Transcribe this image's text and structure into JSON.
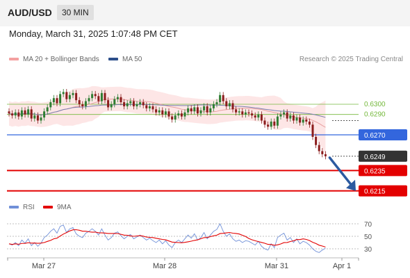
{
  "header": {
    "pair": "AUD/USD",
    "timeframe": "30 MIN"
  },
  "datetime": "Monday, March 31, 2025 1:07:48 PM CET",
  "legend": {
    "ma20": "MA 20 + Bollinger Bands",
    "ma50": "MA 50",
    "credit": "Research © 2025 Trading Central"
  },
  "rsi_legend": {
    "rsi": "RSI",
    "ma": "9MA"
  },
  "colors": {
    "up": "#2e7d32",
    "down": "#8b1c1c",
    "ma20": "#e57373",
    "ma50": "#5c6bc0",
    "band": "#fde0e0",
    "pivot": "#3366dd",
    "support": "#e30000",
    "green_level": "#74b83b",
    "current": "#333333",
    "arrow": "#2c5aa0"
  },
  "chart_data": {
    "type": "candlestick",
    "x_ticks": [
      "Mar 27",
      "Mar 28",
      "Mar 31",
      "Apr 1"
    ],
    "price_levels": [
      {
        "value": 0.63,
        "label": "0.6300",
        "kind": "resistance"
      },
      {
        "value": 0.629,
        "label": "0.6290",
        "kind": "resistance"
      },
      {
        "value": 0.627,
        "label": "0.6270",
        "kind": "pivot"
      },
      {
        "value": 0.6249,
        "label": "0.6249",
        "kind": "current"
      },
      {
        "value": 0.6235,
        "label": "0.6235",
        "kind": "support"
      },
      {
        "value": 0.6215,
        "label": "0.6215",
        "kind": "support"
      }
    ],
    "forecast": {
      "from": 0.6249,
      "to": 0.6215,
      "direction": "down"
    },
    "close": [
      0.6291,
      0.6289,
      0.6292,
      0.6288,
      0.6294,
      0.629,
      0.6295,
      0.6286,
      0.6289,
      0.6284,
      0.6287,
      0.6293,
      0.6297,
      0.6302,
      0.6306,
      0.6301,
      0.631,
      0.6312,
      0.6305,
      0.6309,
      0.6311,
      0.6304,
      0.63,
      0.6298,
      0.6303,
      0.6306,
      0.631,
      0.6308,
      0.6303,
      0.6311,
      0.6304,
      0.6297,
      0.63,
      0.6305,
      0.6307,
      0.6302,
      0.6298,
      0.6301,
      0.6303,
      0.6298,
      0.63,
      0.6302,
      0.6299,
      0.6296,
      0.6298,
      0.6295,
      0.6292,
      0.6294,
      0.629,
      0.6293,
      0.6288,
      0.6285,
      0.6289,
      0.6291,
      0.6288,
      0.6292,
      0.6296,
      0.6293,
      0.6297,
      0.6291,
      0.6294,
      0.6298,
      0.6292,
      0.6296,
      0.63,
      0.6302,
      0.6309,
      0.6303,
      0.6298,
      0.6301,
      0.6295,
      0.6292,
      0.6293,
      0.629,
      0.6292,
      0.6291,
      0.6289,
      0.6287,
      0.629,
      0.6284,
      0.628,
      0.6278,
      0.6283,
      0.6279,
      0.6288,
      0.629,
      0.6292,
      0.6286,
      0.6289,
      0.6284,
      0.6287,
      0.6282,
      0.6285,
      0.6283,
      0.628,
      0.6268,
      0.626,
      0.6254,
      0.6251,
      0.6249
    ],
    "rsi": {
      "levels": [
        70,
        50,
        30
      ],
      "ylim": [
        20,
        80
      ],
      "values": [
        38,
        36,
        40,
        35,
        44,
        39,
        46,
        35,
        40,
        34,
        39,
        48,
        52,
        58,
        62,
        55,
        66,
        68,
        56,
        62,
        64,
        54,
        50,
        48,
        55,
        58,
        62,
        58,
        52,
        62,
        52,
        44,
        48,
        55,
        57,
        51,
        46,
        50,
        53,
        46,
        49,
        52,
        48,
        44,
        47,
        43,
        40,
        44,
        38,
        43,
        36,
        32,
        40,
        44,
        40,
        46,
        52,
        47,
        54,
        44,
        48,
        56,
        46,
        52,
        58,
        61,
        70,
        58,
        50,
        54,
        46,
        42,
        44,
        40,
        43,
        42,
        39,
        36,
        42,
        34,
        30,
        28,
        38,
        32,
        48,
        52,
        55,
        44,
        48,
        40,
        46,
        38,
        42,
        40,
        36,
        30,
        26,
        24,
        28,
        31
      ]
    }
  }
}
